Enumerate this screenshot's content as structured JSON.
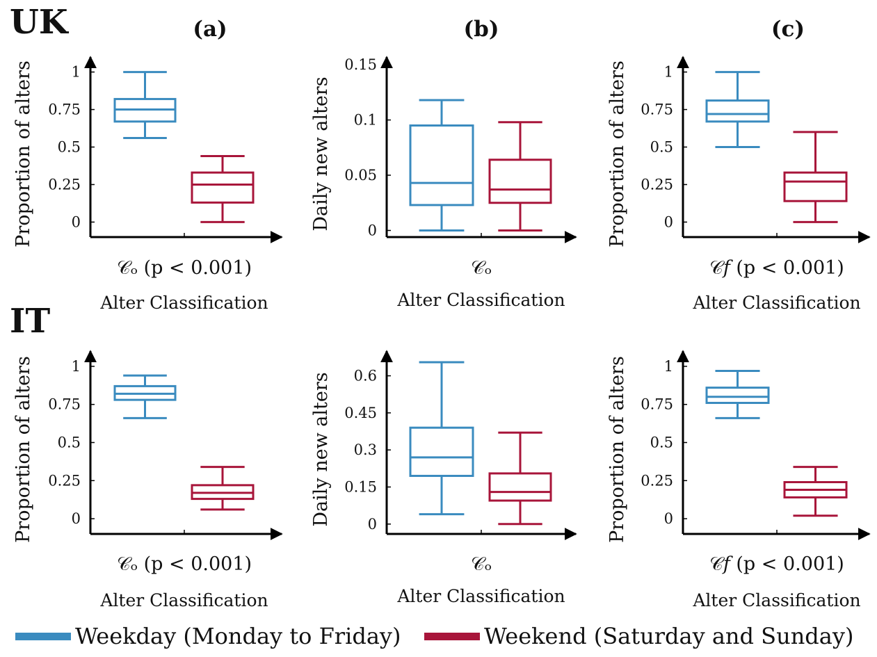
{
  "colors": {
    "weekday": "#3a8bbf",
    "weekend": "#a8153a",
    "axis": "#000000"
  },
  "legend": [
    {
      "name": "Weekday (Monday to Friday)",
      "color": "#3a8bbf"
    },
    {
      "name": "Weekend (Saturday and Sunday)",
      "color": "#a8153a"
    }
  ],
  "row_labels": [
    "UK",
    "IT"
  ],
  "panel_labels": [
    "(a)",
    "(b)",
    "(c)"
  ],
  "chart_data": [
    {
      "id": "uk-a",
      "row": "UK",
      "panel": "(a)",
      "type": "box",
      "ylabel": "Proportion of alters",
      "xlabel": "Alter Classification",
      "category": "𝒞ₒ (p < 0.001)",
      "yticks": [
        0,
        0.25,
        0.5,
        0.75,
        1
      ],
      "ytick_labels": [
        "0",
        "0.25",
        "0.5",
        "0.75",
        "1"
      ],
      "ylim": [
        -0.1,
        1.1
      ],
      "series": [
        {
          "name": "Weekday (Monday to Friday)",
          "min": 0.56,
          "q1": 0.67,
          "median": 0.75,
          "q3": 0.82,
          "max": 1.0
        },
        {
          "name": "Weekend (Saturday and Sunday)",
          "min": 0.0,
          "q1": 0.13,
          "median": 0.25,
          "q3": 0.33,
          "max": 0.44
        }
      ]
    },
    {
      "id": "uk-b",
      "row": "UK",
      "panel": "(b)",
      "type": "box",
      "ylabel": "Daily new alters",
      "xlabel": "Alter Classification",
      "category": "𝒞ₒ",
      "yticks": [
        0,
        0.05,
        0.1,
        0.15
      ],
      "ytick_labels": [
        "0",
        "0.05",
        "0.1",
        "0.15"
      ],
      "ylim": [
        -0.006,
        0.157
      ],
      "series": [
        {
          "name": "Weekday (Monday to Friday)",
          "min": 0.0,
          "q1": 0.023,
          "median": 0.043,
          "q3": 0.095,
          "max": 0.118
        },
        {
          "name": "Weekend (Saturday and Sunday)",
          "min": 0.0,
          "q1": 0.025,
          "median": 0.037,
          "q3": 0.064,
          "max": 0.098
        }
      ]
    },
    {
      "id": "uk-c",
      "row": "UK",
      "panel": "(c)",
      "type": "box",
      "ylabel": "Proportion of alters",
      "xlabel": "Alter Classification",
      "category": "𝒞𝑓 (p < 0.001)",
      "yticks": [
        0,
        0.25,
        0.5,
        0.75,
        1
      ],
      "ytick_labels": [
        "0",
        "0.25",
        "0.5",
        "0.75",
        "1"
      ],
      "ylim": [
        -0.1,
        1.1
      ],
      "series": [
        {
          "name": "Weekday (Monday to Friday)",
          "min": 0.5,
          "q1": 0.67,
          "median": 0.72,
          "q3": 0.81,
          "max": 1.0
        },
        {
          "name": "Weekend (Saturday and Sunday)",
          "min": 0.0,
          "q1": 0.14,
          "median": 0.27,
          "q3": 0.33,
          "max": 0.6
        }
      ]
    },
    {
      "id": "it-a",
      "row": "IT",
      "panel": "(a)",
      "type": "box",
      "ylabel": "Proportion of alters",
      "xlabel": "Alter Classification",
      "category": "𝒞ₒ (p < 0.001)",
      "yticks": [
        0,
        0.25,
        0.5,
        0.75,
        1
      ],
      "ytick_labels": [
        "0",
        "0.25",
        "0.5",
        "0.75",
        "1"
      ],
      "ylim": [
        -0.1,
        1.1
      ],
      "series": [
        {
          "name": "Weekday (Monday to Friday)",
          "min": 0.66,
          "q1": 0.78,
          "median": 0.82,
          "q3": 0.87,
          "max": 0.94
        },
        {
          "name": "Weekend (Saturday and Sunday)",
          "min": 0.06,
          "q1": 0.13,
          "median": 0.17,
          "q3": 0.22,
          "max": 0.34
        }
      ]
    },
    {
      "id": "it-b",
      "row": "IT",
      "panel": "(b)",
      "type": "box",
      "ylabel": "Daily new alters",
      "xlabel": "Alter Classification",
      "category": "𝒞ₒ",
      "yticks": [
        0,
        0.15,
        0.3,
        0.45,
        0.6
      ],
      "ytick_labels": [
        "0",
        "0.15",
        "0.3",
        "0.45",
        "0.6"
      ],
      "ylim": [
        -0.04,
        0.7
      ],
      "series": [
        {
          "name": "Weekday (Monday to Friday)",
          "min": 0.04,
          "q1": 0.195,
          "median": 0.27,
          "q3": 0.39,
          "max": 0.655
        },
        {
          "name": "Weekend (Saturday and Sunday)",
          "min": 0.0,
          "q1": 0.095,
          "median": 0.13,
          "q3": 0.205,
          "max": 0.37
        }
      ]
    },
    {
      "id": "it-c",
      "row": "IT",
      "panel": "(c)",
      "type": "box",
      "ylabel": "Proportion of alters",
      "xlabel": "Alter Classification",
      "category": "𝒞𝑓 (p < 0.001)",
      "yticks": [
        0,
        0.25,
        0.5,
        0.75,
        1
      ],
      "ytick_labels": [
        "0",
        "0.25",
        "0.5",
        "0.75",
        "1"
      ],
      "ylim": [
        -0.1,
        1.1
      ],
      "series": [
        {
          "name": "Weekday (Monday to Friday)",
          "min": 0.66,
          "q1": 0.76,
          "median": 0.8,
          "q3": 0.86,
          "max": 0.97
        },
        {
          "name": "Weekend (Saturday and Sunday)",
          "min": 0.02,
          "q1": 0.14,
          "median": 0.19,
          "q3": 0.24,
          "max": 0.34
        }
      ]
    }
  ]
}
